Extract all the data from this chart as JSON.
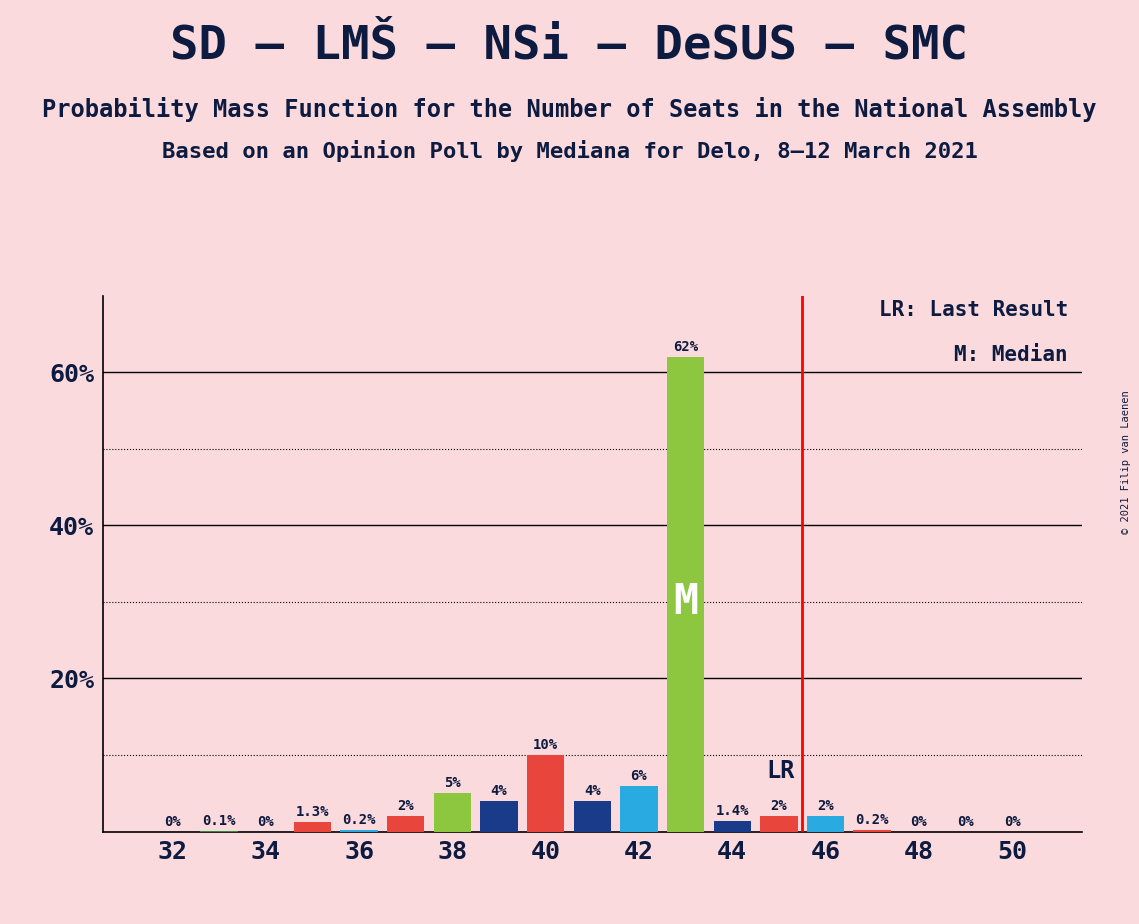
{
  "title1": "SD – LMŠ – NSi – DeSUS – SMC",
  "title2": "Probability Mass Function for the Number of Seats in the National Assembly",
  "title3": "Based on an Opinion Poll by Mediana for Delo, 8–12 March 2021",
  "copyright": "© 2021 Filip van Laenen",
  "background_color": "#FADADD",
  "bar_data": [
    {
      "x": 32,
      "value": 0.0,
      "color": "#E8463C",
      "label": "0%"
    },
    {
      "x": 33,
      "value": 0.1,
      "color": "#2B8C3E",
      "label": "0.1%"
    },
    {
      "x": 34,
      "value": 0.0,
      "color": "#1A3A8A",
      "label": "0%"
    },
    {
      "x": 35,
      "value": 1.3,
      "color": "#E8463C",
      "label": "1.3%"
    },
    {
      "x": 36,
      "value": 0.2,
      "color": "#29ABE2",
      "label": "0.2%"
    },
    {
      "x": 37,
      "value": 2.0,
      "color": "#E8463C",
      "label": "2%"
    },
    {
      "x": 38,
      "value": 5.0,
      "color": "#8DC63F",
      "label": "5%"
    },
    {
      "x": 39,
      "value": 4.0,
      "color": "#1A3A8A",
      "label": "4%"
    },
    {
      "x": 40,
      "value": 10.0,
      "color": "#E8463C",
      "label": "10%"
    },
    {
      "x": 41,
      "value": 4.0,
      "color": "#1A3A8A",
      "label": "4%"
    },
    {
      "x": 42,
      "value": 6.0,
      "color": "#29ABE2",
      "label": "6%"
    },
    {
      "x": 43,
      "value": 62.0,
      "color": "#8DC63F",
      "label": "62%"
    },
    {
      "x": 44,
      "value": 1.4,
      "color": "#1A3A8A",
      "label": "1.4%"
    },
    {
      "x": 45,
      "value": 2.0,
      "color": "#E8463C",
      "label": "2%"
    },
    {
      "x": 46,
      "value": 2.0,
      "color": "#29ABE2",
      "label": "2%"
    },
    {
      "x": 47,
      "value": 0.2,
      "color": "#E8463C",
      "label": "0.2%"
    },
    {
      "x": 48,
      "value": 0.0,
      "color": "#1A3A8A",
      "label": "0%"
    },
    {
      "x": 49,
      "value": 0.0,
      "color": "#29ABE2",
      "label": "0%"
    },
    {
      "x": 50,
      "value": 0.0,
      "color": "#E8463C",
      "label": "0%"
    }
  ],
  "median_x": 43,
  "median_label": "M",
  "lr_x": 45.5,
  "lr_label": "LR",
  "ylim": [
    0,
    70
  ],
  "xticks": [
    32,
    34,
    36,
    38,
    40,
    42,
    44,
    46,
    48,
    50
  ],
  "major_yticks": [
    20,
    40,
    60
  ],
  "dotted_yticks": [
    10,
    30,
    50
  ],
  "bar_width": 0.8,
  "legend_lr": "LR: Last Result",
  "legend_m": "M: Median",
  "title1_fontsize": 34,
  "title2_fontsize": 17,
  "title3_fontsize": 16,
  "axis_label_color": "#0D1B40",
  "tick_label_color": "#0D1B40",
  "bar_label_fontsize": 10,
  "tick_fontsize": 18,
  "legend_fontsize": 15
}
